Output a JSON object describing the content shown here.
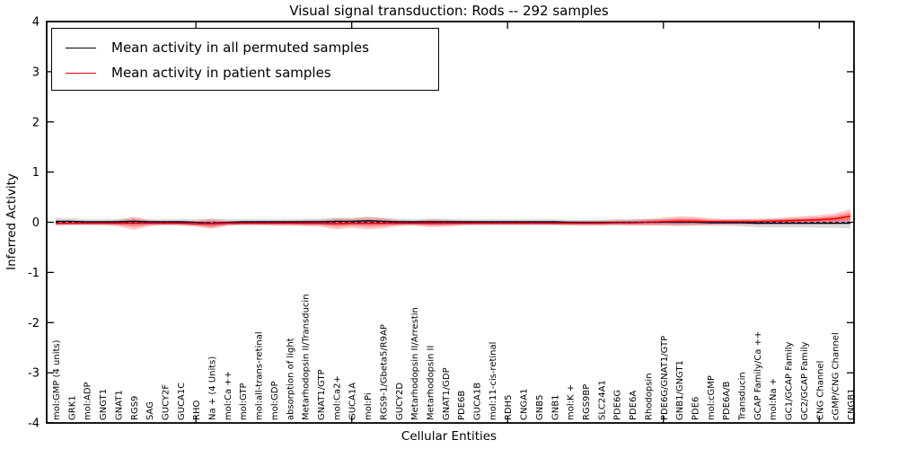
{
  "title": "Visual signal transduction: Rods -- 292 samples",
  "chart_data": {
    "type": "line",
    "title": "Visual signal transduction: Rods -- 292 samples",
    "xlabel": "Cellular Entities",
    "ylabel": "Inferred Activity",
    "ylim": [
      -4,
      4
    ],
    "grid": false,
    "legend_position": "upper left",
    "ytick_values": [
      4,
      3,
      2,
      1,
      0,
      -1,
      -2,
      -3,
      -4
    ],
    "ytick_labels": [
      "4",
      "3",
      "2",
      "1",
      "0",
      "-1",
      "-2",
      "-3",
      "-4"
    ],
    "xtick_indices": [
      9,
      19,
      29,
      39,
      49
    ],
    "categories": [
      "mol:GMP (4 units)",
      "GRK1",
      "mol:ADP",
      "GNGT1",
      "GNAT1",
      "RGS9",
      "SAG",
      "GUCY2F",
      "GUCA1C",
      "RHO",
      "Na + (4 Units)",
      "mol:Ca ++",
      "mol:GTP",
      "mol:all-trans-retinal",
      "mol:GDP",
      "absorption of light",
      "Metarhodopsin II/Transducin",
      "GNAT1/GTP",
      "mol:Ca2+",
      "GUCA1A",
      "mol:Pi",
      "RGS9-1/Gbeta5/R9AP",
      "GUCY2D",
      "Metarhodopsin II/Arrestin",
      "Metarhodopsin II",
      "GNAT1/GDP",
      "PDE6B",
      "GUCA1B",
      "mol:11-cis-retinal",
      "RDH5",
      "CNGA1",
      "GNB5",
      "GNB1",
      "mol:K +",
      "RGS9BP",
      "SLC24A1",
      "PDE6G",
      "PDE6A",
      "Rhodopsin",
      "PDE6G/GNAT1/GTP",
      "GNB1/GNGT1",
      "PDE6",
      "mol:cGMP",
      "PDE6A/B",
      "Transducin",
      "GCAP Family/Ca ++",
      "mol:Na +",
      "GC1/GCAP Family",
      "GC2/GCAP Family",
      "CNG Channel",
      "cGMP/CNG Channel",
      "CNGB1"
    ],
    "series": [
      {
        "name": "Mean activity in all permuted samples",
        "color": "#000000",
        "band_color": "#999999",
        "band_opacity": 0.35,
        "values": [
          0.02,
          0.02,
          0.01,
          0.01,
          0.01,
          0.02,
          0.01,
          0.01,
          0.01,
          0.0,
          -0.02,
          0.0,
          0.01,
          0.01,
          0.01,
          0.01,
          0.01,
          0.01,
          0.02,
          0.02,
          0.03,
          0.02,
          0.01,
          0.01,
          0.01,
          0.01,
          0.01,
          0.01,
          0.01,
          0.01,
          0.01,
          0.01,
          0.01,
          0.0,
          0.0,
          0.0,
          0.0,
          0.0,
          0.0,
          0.0,
          0.0,
          0.0,
          -0.01,
          -0.01,
          -0.01,
          -0.02,
          -0.02,
          -0.02,
          -0.02,
          -0.02,
          -0.02,
          -0.02
        ],
        "band_halfwidth": [
          0.07,
          0.06,
          0.05,
          0.05,
          0.05,
          0.06,
          0.05,
          0.05,
          0.05,
          0.06,
          0.09,
          0.06,
          0.05,
          0.05,
          0.05,
          0.05,
          0.06,
          0.06,
          0.07,
          0.07,
          0.08,
          0.07,
          0.06,
          0.05,
          0.06,
          0.06,
          0.05,
          0.05,
          0.05,
          0.05,
          0.05,
          0.05,
          0.05,
          0.05,
          0.05,
          0.05,
          0.06,
          0.06,
          0.06,
          0.06,
          0.06,
          0.06,
          0.06,
          0.06,
          0.07,
          0.08,
          0.08,
          0.08,
          0.08,
          0.09,
          0.09,
          0.1
        ]
      },
      {
        "name": "Mean activity in patient samples",
        "color": "#f00000",
        "band_color": "#ff0000",
        "band_opacity": 0.22,
        "values": [
          -0.02,
          -0.02,
          -0.02,
          -0.02,
          -0.02,
          -0.02,
          -0.02,
          -0.02,
          -0.02,
          -0.03,
          -0.03,
          -0.02,
          -0.02,
          -0.02,
          -0.02,
          -0.02,
          -0.02,
          -0.02,
          -0.03,
          -0.02,
          -0.02,
          -0.02,
          -0.02,
          -0.02,
          -0.02,
          -0.02,
          -0.02,
          -0.02,
          -0.02,
          -0.02,
          -0.02,
          -0.02,
          -0.02,
          -0.02,
          -0.02,
          -0.02,
          -0.01,
          -0.01,
          0.0,
          0.01,
          0.02,
          0.02,
          0.01,
          0.01,
          0.01,
          0.01,
          0.02,
          0.03,
          0.04,
          0.05,
          0.07,
          0.12
        ],
        "band_halfwidth": [
          0.05,
          0.04,
          0.04,
          0.04,
          0.06,
          0.13,
          0.06,
          0.04,
          0.05,
          0.06,
          0.1,
          0.05,
          0.04,
          0.04,
          0.05,
          0.05,
          0.06,
          0.07,
          0.11,
          0.09,
          0.12,
          0.1,
          0.06,
          0.05,
          0.08,
          0.07,
          0.05,
          0.04,
          0.04,
          0.04,
          0.04,
          0.04,
          0.04,
          0.05,
          0.05,
          0.05,
          0.05,
          0.06,
          0.07,
          0.08,
          0.1,
          0.09,
          0.07,
          0.06,
          0.06,
          0.06,
          0.06,
          0.07,
          0.08,
          0.09,
          0.11,
          0.14
        ]
      }
    ],
    "reference_line": {
      "y": 0,
      "style": "dashed",
      "color": "#15158a"
    }
  }
}
